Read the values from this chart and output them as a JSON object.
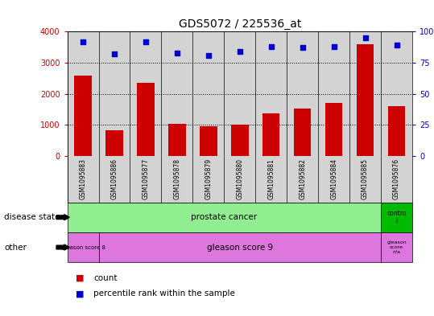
{
  "title": "GDS5072 / 225536_at",
  "samples": [
    "GSM1095883",
    "GSM1095886",
    "GSM1095877",
    "GSM1095878",
    "GSM1095879",
    "GSM1095880",
    "GSM1095881",
    "GSM1095882",
    "GSM1095884",
    "GSM1095885",
    "GSM1095876"
  ],
  "counts": [
    2600,
    820,
    2350,
    1040,
    960,
    1020,
    1370,
    1540,
    1700,
    3600,
    1600
  ],
  "percentile_ranks": [
    92,
    82,
    92,
    83,
    81,
    84,
    88,
    87,
    88,
    95,
    89
  ],
  "bar_color": "#cc0000",
  "dot_color": "#0000cc",
  "ylim_left": [
    0,
    4000
  ],
  "ylim_right": [
    0,
    100
  ],
  "yticks_left": [
    0,
    1000,
    2000,
    3000,
    4000
  ],
  "yticks_right": [
    0,
    25,
    50,
    75,
    100
  ],
  "bg_color": "#ffffff",
  "bar_bg_color": "#d3d3d3",
  "prostate_cancer_color": "#90ee90",
  "control_color": "#00bb00",
  "gleason_color": "#dd77dd",
  "legend_count_color": "#cc0000",
  "legend_percentile_color": "#0000cc"
}
